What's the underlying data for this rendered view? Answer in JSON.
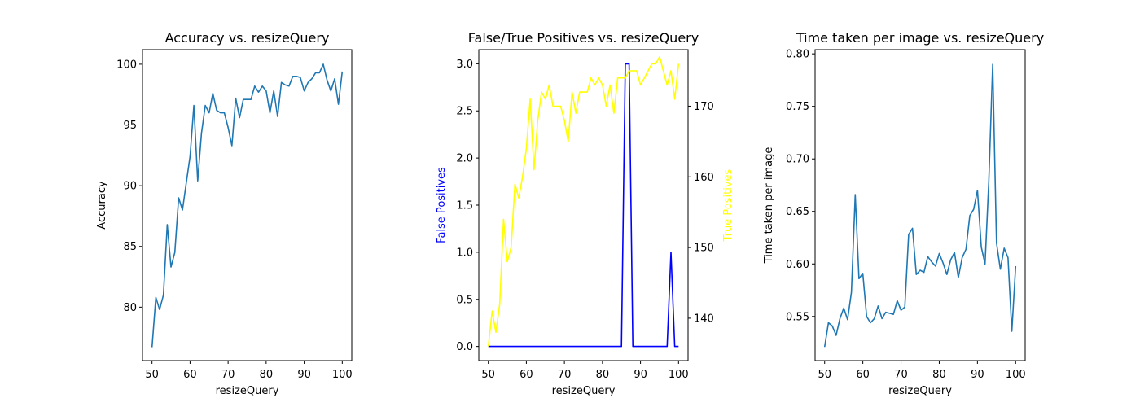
{
  "chart_data": [
    {
      "type": "line",
      "title": "Accuracy vs. resizeQuery",
      "xlabel": "resizeQuery",
      "ylabel": "Accuracy",
      "xlim": [
        47.5,
        102.5
      ],
      "ylim": [
        75.6,
        101.2
      ],
      "xticks": [
        50,
        60,
        70,
        80,
        90,
        100
      ],
      "yticks": [
        80,
        85,
        90,
        95,
        100
      ],
      "grid": false,
      "series": [
        {
          "color": "#1f77b4",
          "x": [
            50,
            51,
            52,
            53,
            54,
            55,
            56,
            57,
            58,
            59,
            60,
            61,
            62,
            63,
            64,
            65,
            66,
            67,
            68,
            69,
            70,
            71,
            72,
            73,
            74,
            75,
            76,
            77,
            78,
            79,
            80,
            81,
            82,
            83,
            84,
            85,
            86,
            87,
            88,
            89,
            90,
            91,
            92,
            93,
            94,
            95,
            96,
            97,
            98,
            99,
            100
          ],
          "y": [
            76.7,
            80.8,
            79.8,
            81.0,
            86.8,
            83.3,
            84.5,
            89.0,
            88.0,
            90.2,
            92.4,
            96.6,
            90.4,
            94.3,
            96.6,
            96.0,
            97.6,
            96.2,
            96.0,
            96.0,
            94.8,
            93.3,
            97.2,
            95.6,
            97.1,
            97.1,
            97.1,
            98.2,
            97.7,
            98.2,
            97.8,
            96.0,
            97.8,
            95.7,
            98.5,
            98.3,
            98.2,
            99.0,
            99.0,
            98.9,
            97.8,
            98.5,
            98.8,
            99.3,
            99.3,
            100.0,
            98.7,
            97.8,
            98.8,
            96.7,
            99.4
          ]
        }
      ]
    },
    {
      "type": "line",
      "title": "False/True Positives vs. resizeQuery",
      "xlabel": "resizeQuery",
      "ylabel": "False Positives",
      "ylabel_right": "True Positives",
      "xlim": [
        47.5,
        102.5
      ],
      "ylim": [
        -0.15,
        3.15
      ],
      "ylim_right": [
        134,
        178
      ],
      "xticks": [
        50,
        60,
        70,
        80,
        90,
        100
      ],
      "yticks": [
        0.0,
        0.5,
        1.0,
        1.5,
        2.0,
        2.5,
        3.0
      ],
      "ytick_labels": [
        "0.0",
        "0.5",
        "1.0",
        "1.5",
        "2.0",
        "2.5",
        "3.0"
      ],
      "yticks_right": [
        140,
        150,
        160,
        170
      ],
      "grid": false,
      "series": [
        {
          "axis": "left",
          "color": "#0000ff",
          "x": [
            50,
            51,
            52,
            53,
            54,
            55,
            56,
            57,
            58,
            59,
            60,
            61,
            62,
            63,
            64,
            65,
            66,
            67,
            68,
            69,
            70,
            71,
            72,
            73,
            74,
            75,
            76,
            77,
            78,
            79,
            80,
            81,
            82,
            83,
            84,
            85,
            86,
            87,
            88,
            89,
            90,
            91,
            92,
            93,
            94,
            95,
            96,
            97,
            98,
            99,
            100
          ],
          "y": [
            0,
            0,
            0,
            0,
            0,
            0,
            0,
            0,
            0,
            0,
            0,
            0,
            0,
            0,
            0,
            0,
            0,
            0,
            0,
            0,
            0,
            0,
            0,
            0,
            0,
            0,
            0,
            0,
            0,
            0,
            0,
            0,
            0,
            0,
            0,
            0,
            3,
            3,
            0,
            0,
            0,
            0,
            0,
            0,
            0,
            0,
            0,
            0,
            1,
            0,
            0
          ]
        },
        {
          "axis": "right",
          "color": "#ffff00",
          "x": [
            50,
            51,
            52,
            53,
            54,
            55,
            56,
            57,
            58,
            59,
            60,
            61,
            62,
            63,
            64,
            65,
            66,
            67,
            68,
            69,
            70,
            71,
            72,
            73,
            74,
            75,
            76,
            77,
            78,
            79,
            80,
            81,
            82,
            83,
            84,
            85,
            86,
            87,
            88,
            89,
            90,
            91,
            92,
            93,
            94,
            95,
            96,
            97,
            98,
            99,
            100
          ],
          "y": [
            136,
            141,
            138,
            142,
            154,
            148,
            150,
            159,
            157,
            160,
            164,
            171,
            161,
            168,
            172,
            171,
            173,
            170,
            170,
            170,
            168,
            165,
            172,
            169,
            172,
            172,
            172,
            174,
            173,
            174,
            173,
            170,
            173,
            169,
            174,
            174,
            174,
            175,
            175,
            175,
            173,
            174,
            175,
            176,
            176,
            177,
            175,
            173,
            175,
            171,
            176
          ]
        }
      ]
    },
    {
      "type": "line",
      "title": "Time taken per image vs. resizeQuery",
      "xlabel": "resizeQuery",
      "ylabel": "Time taken per image",
      "xlim": [
        47.5,
        102.5
      ],
      "ylim": [
        0.508,
        0.804
      ],
      "xticks": [
        50,
        60,
        70,
        80,
        90,
        100
      ],
      "yticks": [
        0.55,
        0.6,
        0.65,
        0.7,
        0.75,
        0.8
      ],
      "ytick_labels": [
        "0.55",
        "0.60",
        "0.65",
        "0.70",
        "0.75",
        "0.80"
      ],
      "grid": false,
      "series": [
        {
          "color": "#1f77b4",
          "x": [
            50,
            51,
            52,
            53,
            54,
            55,
            56,
            57,
            58,
            59,
            60,
            61,
            62,
            63,
            64,
            65,
            66,
            67,
            68,
            69,
            70,
            71,
            72,
            73,
            74,
            75,
            76,
            77,
            78,
            79,
            80,
            81,
            82,
            83,
            84,
            85,
            86,
            87,
            88,
            89,
            90,
            91,
            92,
            93,
            94,
            95,
            96,
            97,
            98,
            99,
            100
          ],
          "y": [
            0.521,
            0.544,
            0.541,
            0.532,
            0.548,
            0.558,
            0.547,
            0.573,
            0.666,
            0.586,
            0.591,
            0.55,
            0.544,
            0.548,
            0.56,
            0.548,
            0.554,
            0.553,
            0.552,
            0.565,
            0.556,
            0.559,
            0.628,
            0.634,
            0.59,
            0.594,
            0.592,
            0.607,
            0.602,
            0.598,
            0.61,
            0.601,
            0.59,
            0.604,
            0.611,
            0.587,
            0.606,
            0.614,
            0.646,
            0.652,
            0.67,
            0.616,
            0.6,
            0.68,
            0.79,
            0.62,
            0.595,
            0.615,
            0.606,
            0.536,
            0.598
          ]
        }
      ]
    }
  ]
}
